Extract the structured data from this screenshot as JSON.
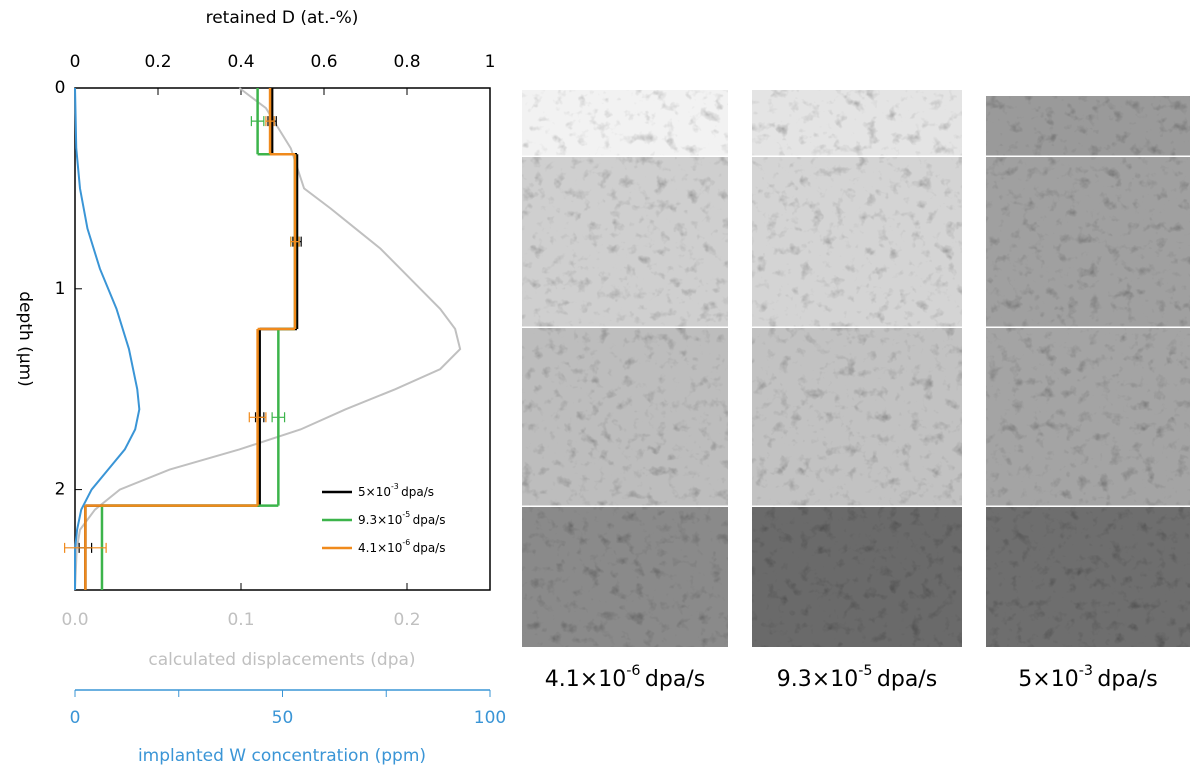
{
  "chart_data": {
    "type": "step",
    "x_label": "retained D (at.-%)",
    "xlim": [
      0,
      1
    ],
    "xticks": [
      0,
      0.2,
      0.4,
      0.6,
      0.8,
      1
    ],
    "y_label": "depth (µm)",
    "ylim": [
      0,
      2.5
    ],
    "yticks": [
      0,
      1,
      2
    ],
    "depth_edges": [
      0,
      0.33,
      1.2,
      2.08,
      2.5
    ],
    "legend": "lower right",
    "series": [
      {
        "name": {
          "mantissa": "5×10",
          "exponent": "-3",
          "unit": "dpa/s"
        },
        "color": "#000000",
        "values": [
          0.475,
          0.535,
          0.445,
          0.025
        ],
        "errors": [
          0.01,
          0.01,
          0.01,
          0.015
        ]
      },
      {
        "name": {
          "mantissa": "9.3×10",
          "exponent": "-5",
          "unit": "dpa/s"
        },
        "color": "#3cb44b",
        "values": [
          0.44,
          0.53,
          0.49,
          0.065
        ],
        "errors": [
          0.015,
          0.01,
          0.015,
          0.0
        ]
      },
      {
        "name": {
          "mantissa": "4.1×10",
          "exponent": "-6",
          "unit": "dpa/s"
        },
        "color": "#f08a1c",
        "values": [
          0.47,
          0.53,
          0.44,
          0.025
        ],
        "errors": [
          0.01,
          0.01,
          0.02,
          0.05
        ]
      }
    ],
    "displacements": {
      "label": "calculated displacements (dpa)",
      "color": "#c0c0c0",
      "xlim": [
        0,
        0.25
      ],
      "xticks": [
        {
          "value": 0,
          "label": "0.0"
        },
        0.1,
        0.2
      ],
      "depth": [
        0,
        0.1,
        0.3,
        0.5,
        0.6,
        0.7,
        0.8,
        0.9,
        1.0,
        1.1,
        1.2,
        1.3,
        1.4,
        1.5,
        1.6,
        1.7,
        1.8,
        1.9,
        2.0,
        2.1,
        2.2,
        2.3,
        2.5
      ],
      "values": [
        0.099,
        0.115,
        0.13,
        0.138,
        0.154,
        0.169,
        0.184,
        0.196,
        0.208,
        0.22,
        0.229,
        0.232,
        0.22,
        0.193,
        0.163,
        0.136,
        0.099,
        0.057,
        0.027,
        0.012,
        0.003,
        0.001,
        0
      ]
    },
    "w_concentration": {
      "label": "implanted W concentration (ppm)",
      "color": "#3a95d6",
      "xlim": [
        0,
        100
      ],
      "xticks": [
        0,
        50,
        100
      ],
      "minor_ticks": [
        25,
        75
      ],
      "depth": [
        0,
        0.3,
        0.5,
        0.7,
        0.9,
        1.1,
        1.3,
        1.5,
        1.6,
        1.7,
        1.8,
        1.9,
        2.0,
        2.1,
        2.2,
        2.3,
        2.5
      ],
      "values": [
        0,
        0.3,
        1.2,
        3,
        6,
        10,
        13,
        15,
        15.5,
        14.5,
        12,
        8,
        4,
        1.5,
        0.5,
        0,
        0
      ]
    }
  },
  "images": [
    {
      "caption": {
        "mantissa": "4.1×10",
        "exponent": "-6",
        "unit": "dpa/s"
      }
    },
    {
      "caption": {
        "mantissa": "9.3×10",
        "exponent": "-5",
        "unit": "dpa/s"
      }
    },
    {
      "caption": {
        "mantissa": "5×10",
        "exponent": "-3",
        "unit": "dpa/s"
      }
    }
  ]
}
